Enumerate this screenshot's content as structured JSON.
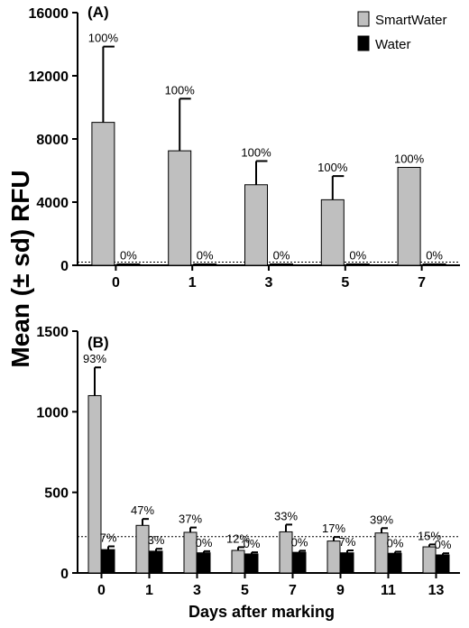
{
  "figure": {
    "ylabel": "Mean (± sd) RFU",
    "xlabel": "Days after marking"
  },
  "legend": {
    "position": "top-right",
    "items": [
      {
        "label": "SmartWater",
        "color": "#bfbfbf"
      },
      {
        "label": "Water",
        "color": "#000000"
      }
    ]
  },
  "chart_data": [
    {
      "type": "bar",
      "panel": "(A)",
      "categories": [
        "0",
        "1",
        "3",
        "5",
        "7"
      ],
      "ylim": [
        0,
        16000
      ],
      "yticks": [
        0,
        4000,
        8000,
        12000,
        16000
      ],
      "threshold": 200,
      "series": [
        {
          "name": "SmartWater",
          "color": "#bfbfbf",
          "values": [
            9050,
            7250,
            5100,
            4150,
            6200
          ],
          "sd": [
            4800,
            3300,
            1500,
            1500,
            0
          ],
          "labels": [
            "100%",
            "100%",
            "100%",
            "100%",
            "100%"
          ]
        },
        {
          "name": "Water",
          "color": "#000000",
          "values": [
            40,
            30,
            30,
            30,
            30
          ],
          "sd": [
            0,
            0,
            0,
            0,
            0
          ],
          "labels": [
            "0%",
            "0%",
            "0%",
            "0%",
            "0%"
          ]
        }
      ]
    },
    {
      "type": "bar",
      "panel": "(B)",
      "categories": [
        "0",
        "1",
        "3",
        "5",
        "7",
        "9",
        "11",
        "13"
      ],
      "ylim": [
        0,
        1500
      ],
      "yticks": [
        0,
        500,
        1000,
        1500
      ],
      "threshold": 225,
      "series": [
        {
          "name": "SmartWater",
          "color": "#bfbfbf",
          "values": [
            1100,
            295,
            252,
            140,
            255,
            198,
            248,
            162
          ],
          "sd": [
            175,
            40,
            30,
            20,
            45,
            25,
            30,
            15
          ],
          "labels": [
            "93%",
            "47%",
            "37%",
            "12%",
            "33%",
            "17%",
            "39%",
            "15%"
          ]
        },
        {
          "name": "Water",
          "color": "#000000",
          "values": [
            145,
            135,
            125,
            118,
            128,
            125,
            122,
            112
          ],
          "sd": [
            20,
            15,
            10,
            10,
            10,
            15,
            10,
            10
          ],
          "labels": [
            "7%",
            "3%",
            "0%",
            "0%",
            "0%",
            "7%",
            "0%",
            "0%"
          ]
        }
      ]
    }
  ]
}
